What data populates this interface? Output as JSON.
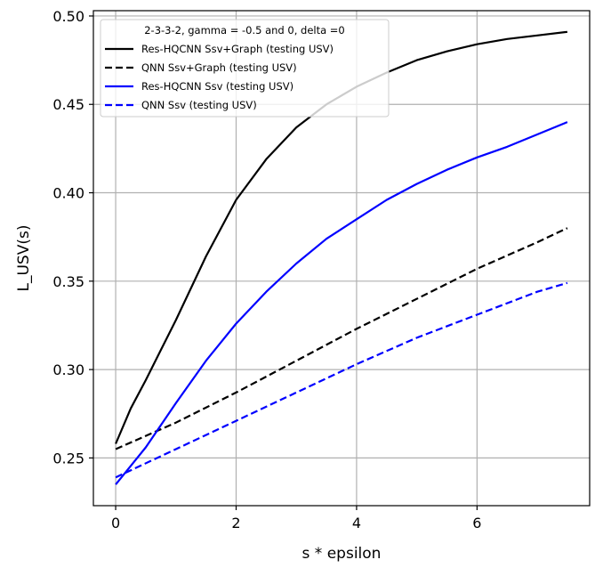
{
  "chart_data": {
    "type": "line",
    "xlabel": "s * epsilon",
    "ylabel": "L_USV(s)",
    "xlim": [
      -0.37,
      7.87
    ],
    "ylim": [
      0.223,
      0.503
    ],
    "xticks": [
      0,
      2,
      4,
      6
    ],
    "yticks": [
      0.25,
      0.3,
      0.35,
      0.4,
      0.45,
      0.5
    ],
    "xtick_labels": [
      "0",
      "2",
      "4",
      "6"
    ],
    "ytick_labels": [
      "0.25",
      "0.30",
      "0.35",
      "0.40",
      "0.45",
      "0.50"
    ],
    "grid": true,
    "legend": {
      "title": "2-3-3-2, gamma = -0.5 and 0, delta =0",
      "placement": "upper-left"
    },
    "series": [
      {
        "name": "Res-HQCNN Ssv+Graph (testing USV)",
        "color": "#000000",
        "dash": "solid",
        "x": [
          0,
          0.25,
          0.5,
          0.75,
          1,
          1.5,
          2,
          2.5,
          3,
          3.5,
          4,
          4.5,
          5,
          5.5,
          6,
          6.5,
          7,
          7.5
        ],
        "y": [
          0.258,
          0.278,
          0.294,
          0.311,
          0.328,
          0.364,
          0.396,
          0.419,
          0.437,
          0.45,
          0.46,
          0.468,
          0.475,
          0.48,
          0.484,
          0.487,
          0.489,
          0.491
        ]
      },
      {
        "name": "QNN Ssv+Graph (testing USV)",
        "color": "#000000",
        "dash": "dashed",
        "x": [
          0,
          1,
          2,
          3,
          4,
          5,
          6,
          7,
          7.5
        ],
        "y": [
          0.255,
          0.27,
          0.287,
          0.305,
          0.323,
          0.34,
          0.357,
          0.372,
          0.38
        ]
      },
      {
        "name": "Res-HQCNN Ssv (testing USV)",
        "color": "#0000ff",
        "dash": "solid",
        "x": [
          0,
          0.5,
          1,
          1.5,
          2,
          2.5,
          3,
          3.5,
          4,
          4.5,
          5,
          5.5,
          6,
          6.5,
          7,
          7.5
        ],
        "y": [
          0.235,
          0.256,
          0.281,
          0.305,
          0.326,
          0.344,
          0.36,
          0.374,
          0.385,
          0.396,
          0.405,
          0.413,
          0.42,
          0.426,
          0.433,
          0.44
        ]
      },
      {
        "name": "QNN Ssv (testing USV)",
        "color": "#0000ff",
        "dash": "dashed",
        "x": [
          0,
          1,
          2,
          3,
          4,
          5,
          6,
          7,
          7.5
        ],
        "y": [
          0.239,
          0.255,
          0.271,
          0.287,
          0.303,
          0.318,
          0.331,
          0.344,
          0.349
        ]
      }
    ]
  }
}
